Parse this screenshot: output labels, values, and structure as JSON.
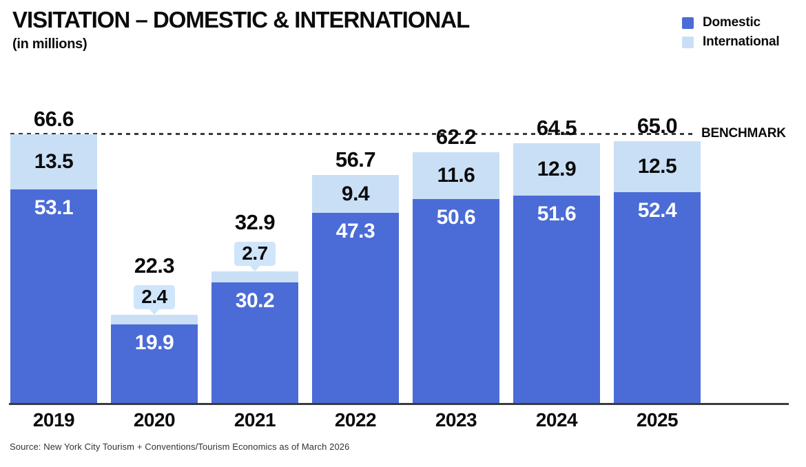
{
  "chart_data": {
    "type": "bar",
    "stacked": true,
    "title": "VISITATION – DOMESTIC & INTERNATIONAL",
    "subtitle": "(in millions)",
    "categories": [
      "2019",
      "2020",
      "2021",
      "2022",
      "2023",
      "2024",
      "2025"
    ],
    "series": [
      {
        "name": "Domestic",
        "color": "#4b6cd6",
        "values": [
          53.1,
          19.9,
          30.2,
          47.3,
          50.6,
          51.6,
          52.4
        ],
        "labels": [
          "53.1",
          "19.9",
          "30.2",
          "47.3",
          "50.6",
          "51.6",
          "52.4"
        ]
      },
      {
        "name": "International",
        "color": "#c9dff5",
        "values": [
          13.5,
          2.4,
          2.7,
          9.4,
          11.6,
          12.9,
          12.5
        ],
        "labels": [
          "13.5",
          "2.4",
          "2.7",
          "9.4",
          "11.6",
          "12.9",
          "12.5"
        ]
      }
    ],
    "totals": [
      66.6,
      22.3,
      32.9,
      56.7,
      62.2,
      64.5,
      65.0
    ],
    "totals_labels": [
      "66.6",
      "22.3",
      "32.9",
      "56.7",
      "62.2",
      "64.5",
      "65.0"
    ],
    "benchmark": {
      "value": 66.6,
      "label": "BENCHMARK"
    },
    "callout_categories": [
      "2020",
      "2021"
    ],
    "legend_position": "top-right",
    "grid": false,
    "ylim": [
      0,
      70
    ],
    "source": "Source: New York City Tourism + Conventions/Tourism Economics as of March 2026"
  }
}
